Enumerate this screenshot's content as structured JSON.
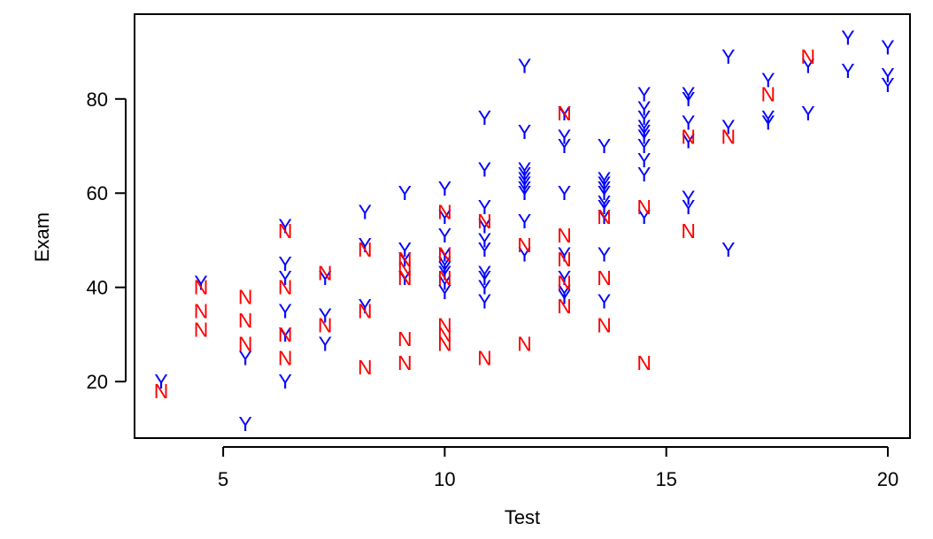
{
  "chart_data": {
    "type": "scatter",
    "title": "",
    "xlabel": "Test",
    "ylabel": "Exam",
    "xlim": [
      3,
      20.5
    ],
    "ylim": [
      8,
      98
    ],
    "x_ticks": [
      5,
      10,
      15,
      20
    ],
    "y_ticks": [
      20,
      40,
      60,
      80
    ],
    "grid": false,
    "legend": "none",
    "series": [
      {
        "name": "Y",
        "color": "#0000ff",
        "points": [
          [
            3.6,
            20
          ],
          [
            4.5,
            41
          ],
          [
            5.5,
            25
          ],
          [
            5.5,
            11
          ],
          [
            6.4,
            53
          ],
          [
            6.4,
            45
          ],
          [
            6.4,
            42
          ],
          [
            6.4,
            35
          ],
          [
            6.4,
            30
          ],
          [
            6.4,
            20
          ],
          [
            7.3,
            42
          ],
          [
            7.3,
            34
          ],
          [
            7.3,
            28
          ],
          [
            8.2,
            56
          ],
          [
            8.2,
            49
          ],
          [
            8.2,
            36
          ],
          [
            9.1,
            60
          ],
          [
            9.1,
            48
          ],
          [
            9.1,
            46
          ],
          [
            9.1,
            42
          ],
          [
            10.0,
            61
          ],
          [
            10.0,
            55
          ],
          [
            10.0,
            51
          ],
          [
            10.0,
            47
          ],
          [
            10.0,
            45
          ],
          [
            10.0,
            44
          ],
          [
            10.0,
            43
          ],
          [
            10.0,
            41
          ],
          [
            10.0,
            39
          ],
          [
            10.9,
            76
          ],
          [
            10.9,
            65
          ],
          [
            10.9,
            57
          ],
          [
            10.9,
            53
          ],
          [
            10.9,
            50
          ],
          [
            10.9,
            48
          ],
          [
            10.9,
            43
          ],
          [
            10.9,
            42
          ],
          [
            10.9,
            40
          ],
          [
            10.9,
            37
          ],
          [
            11.8,
            87
          ],
          [
            11.8,
            73
          ],
          [
            11.8,
            65
          ],
          [
            11.8,
            64
          ],
          [
            11.8,
            63
          ],
          [
            11.8,
            62
          ],
          [
            11.8,
            61
          ],
          [
            11.8,
            60
          ],
          [
            11.8,
            54
          ],
          [
            11.8,
            47
          ],
          [
            12.7,
            77
          ],
          [
            12.7,
            72
          ],
          [
            12.7,
            70
          ],
          [
            12.7,
            60
          ],
          [
            12.7,
            47
          ],
          [
            12.7,
            42
          ],
          [
            12.7,
            39
          ],
          [
            12.7,
            38
          ],
          [
            13.6,
            70
          ],
          [
            13.6,
            63
          ],
          [
            13.6,
            62
          ],
          [
            13.6,
            61
          ],
          [
            13.6,
            60
          ],
          [
            13.6,
            58
          ],
          [
            13.6,
            57
          ],
          [
            13.6,
            55
          ],
          [
            13.6,
            47
          ],
          [
            13.6,
            37
          ],
          [
            14.5,
            81
          ],
          [
            14.5,
            78
          ],
          [
            14.5,
            76
          ],
          [
            14.5,
            74
          ],
          [
            14.5,
            73
          ],
          [
            14.5,
            72
          ],
          [
            14.5,
            70
          ],
          [
            14.5,
            67
          ],
          [
            14.5,
            64
          ],
          [
            14.5,
            55
          ],
          [
            15.5,
            81
          ],
          [
            15.5,
            80
          ],
          [
            15.5,
            75
          ],
          [
            15.5,
            71
          ],
          [
            15.5,
            59
          ],
          [
            15.5,
            57
          ],
          [
            16.4,
            89
          ],
          [
            16.4,
            74
          ],
          [
            16.4,
            48
          ],
          [
            17.3,
            84
          ],
          [
            17.3,
            76
          ],
          [
            17.3,
            75
          ],
          [
            18.2,
            87
          ],
          [
            18.2,
            77
          ],
          [
            19.1,
            93
          ],
          [
            19.1,
            86
          ],
          [
            20.0,
            91
          ],
          [
            20.0,
            85
          ],
          [
            20.0,
            83
          ]
        ]
      },
      {
        "name": "N",
        "color": "#ff0000",
        "points": [
          [
            3.6,
            18
          ],
          [
            4.5,
            40
          ],
          [
            4.5,
            35
          ],
          [
            4.5,
            31
          ],
          [
            5.5,
            38
          ],
          [
            5.5,
            33
          ],
          [
            5.5,
            28
          ],
          [
            6.4,
            52
          ],
          [
            6.4,
            40
          ],
          [
            6.4,
            30
          ],
          [
            6.4,
            25
          ],
          [
            7.3,
            43
          ],
          [
            7.3,
            32
          ],
          [
            8.2,
            48
          ],
          [
            8.2,
            35
          ],
          [
            8.2,
            23
          ],
          [
            9.1,
            46
          ],
          [
            9.1,
            44
          ],
          [
            9.1,
            42
          ],
          [
            9.1,
            29
          ],
          [
            9.1,
            24
          ],
          [
            10.0,
            56
          ],
          [
            10.0,
            47
          ],
          [
            10.0,
            42
          ],
          [
            10.0,
            32
          ],
          [
            10.0,
            30
          ],
          [
            10.0,
            28
          ],
          [
            10.9,
            54
          ],
          [
            10.9,
            25
          ],
          [
            11.8,
            49
          ],
          [
            11.8,
            28
          ],
          [
            12.7,
            77
          ],
          [
            12.7,
            51
          ],
          [
            12.7,
            46
          ],
          [
            12.7,
            41
          ],
          [
            12.7,
            36
          ],
          [
            13.6,
            55
          ],
          [
            13.6,
            42
          ],
          [
            13.6,
            32
          ],
          [
            14.5,
            57
          ],
          [
            14.5,
            24
          ],
          [
            15.5,
            72
          ],
          [
            15.5,
            52
          ],
          [
            16.4,
            72
          ],
          [
            17.3,
            81
          ],
          [
            18.2,
            89
          ]
        ]
      }
    ]
  }
}
